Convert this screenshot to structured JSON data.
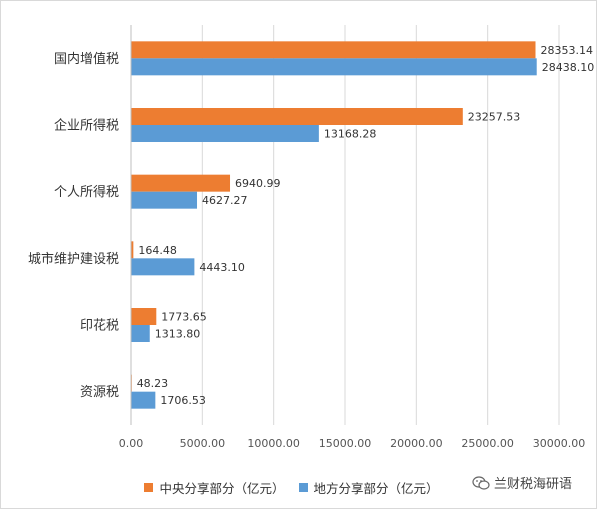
{
  "chart_data": {
    "type": "bar",
    "orientation": "horizontal",
    "categories": [
      "国内增值税",
      "企业所得税",
      "个人所得税",
      "城市维护建设税",
      "印花税",
      "资源税"
    ],
    "series": [
      {
        "name": "中央分享部分（亿元）",
        "values": [
          28353.14,
          23257.53,
          6940.99,
          164.48,
          1773.65,
          48.23
        ],
        "labels": [
          "28353.14",
          "23257.53",
          "6940.99",
          "164.48",
          "1773.65",
          "48.23"
        ],
        "color": "#ed7d31"
      },
      {
        "name": "地方分享部分（亿元）",
        "values": [
          28438.1,
          13168.28,
          4627.27,
          4443.1,
          1313.8,
          1706.53
        ],
        "labels": [
          "28438.10",
          "13168.28",
          "4627.27",
          "4443.10",
          "1313.80",
          "1706.53"
        ],
        "color": "#5b9bd5"
      }
    ],
    "x_ticks": [
      "0.00",
      "5000.00",
      "10000.00",
      "15000.00",
      "20000.00",
      "25000.00",
      "30000.00"
    ],
    "xlim": [
      0,
      30000
    ],
    "grid": "vertical",
    "legend_position": "bottom"
  },
  "watermark": {
    "text": "兰财税海研语",
    "icon": "wechat-speech-icon"
  }
}
